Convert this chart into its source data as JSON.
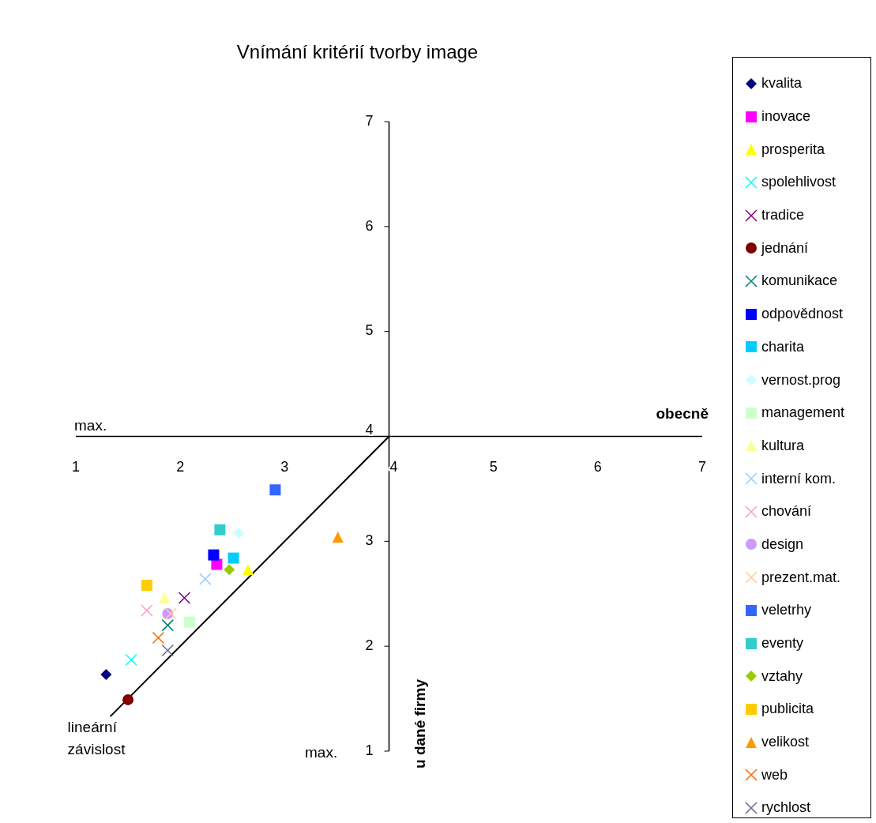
{
  "chart_data": {
    "type": "scatter",
    "title": "Vnímání kritérií tvorby image",
    "xlabel": "obecně",
    "ylabel": "u dané firmy",
    "xlim": [
      1,
      7
    ],
    "xticks": [
      1,
      2,
      3,
      4,
      5,
      6,
      7
    ],
    "ylim": [
      1,
      7
    ],
    "yticks": [
      1,
      2,
      3,
      4,
      5,
      6,
      7
    ],
    "legend": "right",
    "annotations": [
      "max.",
      "max."
    ],
    "series": [
      {
        "name": "kvalita",
        "color": "#000080",
        "marker": "diamond",
        "x": [
          1.29
        ],
        "values": [
          1.73
        ]
      },
      {
        "name": "inovace",
        "color": "#ff00ff",
        "marker": "square",
        "x": [
          2.35
        ],
        "values": [
          2.78
        ]
      },
      {
        "name": "prosperita",
        "color": "#ffff00",
        "marker": "triangle",
        "x": [
          2.65
        ],
        "values": [
          2.73
        ]
      },
      {
        "name": "spolehlivost",
        "color": "#00ffff",
        "marker": "cross",
        "x": [
          1.53
        ],
        "values": [
          1.87
        ]
      },
      {
        "name": "tradice",
        "color": "#800080",
        "marker": "cross",
        "x": [
          2.04
        ],
        "values": [
          2.46
        ]
      },
      {
        "name": "jednání",
        "color": "#800000",
        "marker": "circle",
        "x": [
          1.5
        ],
        "values": [
          1.49
        ]
      },
      {
        "name": "komunikace",
        "color": "#008080",
        "marker": "cross",
        "x": [
          1.88
        ],
        "values": [
          2.2
        ]
      },
      {
        "name": "odpovědnost",
        "color": "#0000ff",
        "marker": "square",
        "x": [
          2.32
        ],
        "values": [
          2.87
        ]
      },
      {
        "name": "charita",
        "color": "#00ccff",
        "marker": "square",
        "x": [
          2.51
        ],
        "values": [
          2.84
        ]
      },
      {
        "name": "vernost.prog",
        "color": "#ccffff",
        "marker": "diamond",
        "x": [
          2.56
        ],
        "values": [
          3.08
        ]
      },
      {
        "name": "management",
        "color": "#ccffcc",
        "marker": "square",
        "x": [
          2.09
        ],
        "values": [
          2.23
        ]
      },
      {
        "name": "kultura",
        "color": "#ffff99",
        "marker": "triangle",
        "x": [
          1.85
        ],
        "values": [
          2.46
        ]
      },
      {
        "name": "interní kom.",
        "color": "#99ccff",
        "marker": "cross",
        "x": [
          2.24
        ],
        "values": [
          2.64
        ]
      },
      {
        "name": "chování",
        "color": "#ff99cc",
        "marker": "cross",
        "x": [
          1.68
        ],
        "values": [
          2.34
        ]
      },
      {
        "name": "design",
        "color": "#cc99ff",
        "marker": "circle",
        "x": [
          1.88
        ],
        "values": [
          2.31
        ]
      },
      {
        "name": "prezent.mat.",
        "color": "#ffcc99",
        "marker": "cross",
        "x": [
          1.91
        ],
        "values": [
          2.31
        ]
      },
      {
        "name": "veletrhy",
        "color": "#3366ff",
        "marker": "square",
        "x": [
          2.91
        ],
        "values": [
          3.49
        ]
      },
      {
        "name": "eventy",
        "color": "#33cccc",
        "marker": "square",
        "x": [
          2.38
        ],
        "values": [
          3.11
        ]
      },
      {
        "name": "vztahy",
        "color": "#99cc00",
        "marker": "diamond",
        "x": [
          2.47
        ],
        "values": [
          2.73
        ]
      },
      {
        "name": "publicita",
        "color": "#ffcc00",
        "marker": "square",
        "x": [
          1.68
        ],
        "values": [
          2.58
        ]
      },
      {
        "name": "velikost",
        "color": "#ff9900",
        "marker": "triangle",
        "x": [
          3.51
        ],
        "values": [
          3.04
        ]
      },
      {
        "name": "web",
        "color": "#ff6600",
        "marker": "cross",
        "x": [
          1.79
        ],
        "values": [
          2.08
        ]
      },
      {
        "name": "rychlost",
        "color": "#666699",
        "marker": "cross",
        "x": [
          1.88
        ],
        "values": [
          1.96
        ]
      },
      {
        "name": "lineární závislost",
        "type": "line",
        "color": "#000000",
        "x": [
          1.33,
          4
        ],
        "values": [
          1.33,
          4
        ]
      }
    ]
  }
}
